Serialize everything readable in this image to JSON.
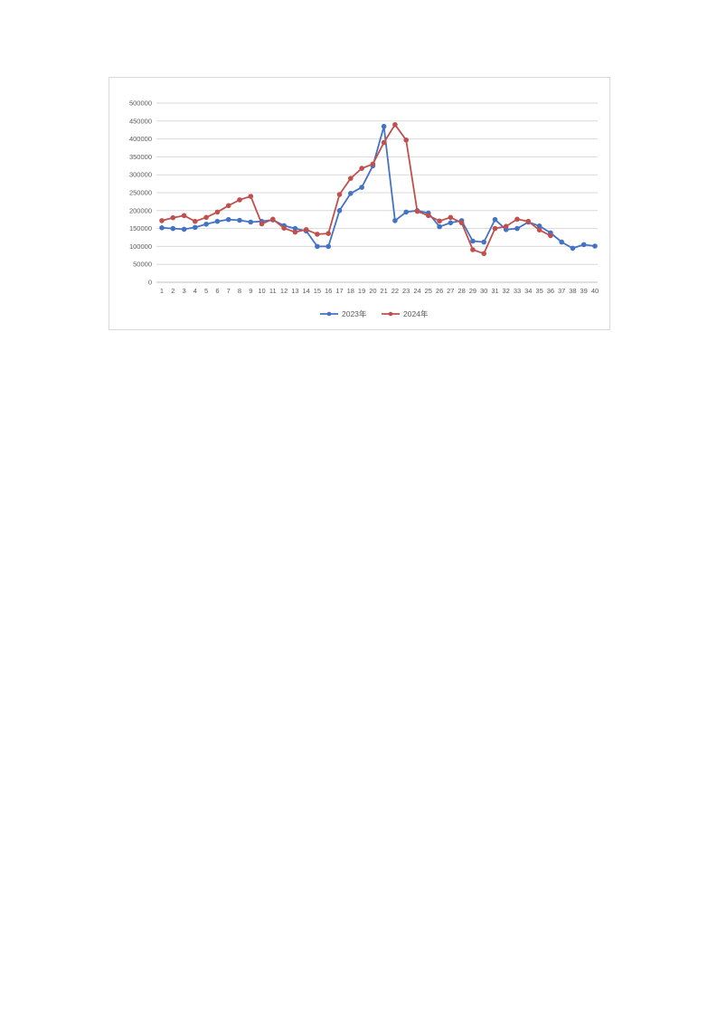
{
  "page": {
    "background": "#ffffff"
  },
  "chart_data": {
    "type": "line",
    "title": "",
    "xlabel": "",
    "ylabel": "",
    "x": [
      1,
      2,
      3,
      4,
      5,
      6,
      7,
      8,
      9,
      10,
      11,
      12,
      13,
      14,
      15,
      16,
      17,
      18,
      19,
      20,
      21,
      22,
      23,
      24,
      25,
      26,
      27,
      28,
      29,
      30,
      31,
      32,
      33,
      34,
      35,
      36,
      37,
      38,
      39,
      40
    ],
    "series": [
      {
        "name": "2023年",
        "color": "#4472C4",
        "values": [
          152000,
          150000,
          148000,
          153000,
          162000,
          170000,
          175000,
          173000,
          168000,
          170000,
          174000,
          158000,
          150000,
          143000,
          100000,
          100000,
          200000,
          248000,
          265000,
          325000,
          435000,
          172000,
          196000,
          200000,
          193000,
          155000,
          166000,
          172000,
          115000,
          112000,
          175000,
          147000,
          150000,
          168000,
          157000,
          138000,
          112000,
          95000,
          105000,
          101000
        ]
      },
      {
        "name": "2024年",
        "color": "#C0504D",
        "values": [
          172000,
          180000,
          186000,
          170000,
          181000,
          196000,
          214000,
          230000,
          240000,
          163000,
          176000,
          151000,
          140000,
          147000,
          134000,
          136000,
          245000,
          290000,
          318000,
          330000,
          390000,
          440000,
          397000,
          198000,
          186000,
          171000,
          181000,
          166000,
          91000,
          80000,
          150000,
          156000,
          176000,
          170000,
          146000,
          130000,
          null,
          null,
          null,
          null
        ]
      }
    ],
    "ylim": [
      0,
      500000
    ],
    "ytick_step": 50000,
    "ytick_labels": [
      "0",
      "50000",
      "100000",
      "150000",
      "200000",
      "250000",
      "300000",
      "350000",
      "400000",
      "450000",
      "500000"
    ],
    "grid": true,
    "legend_position": "bottom",
    "marker": "circle"
  }
}
